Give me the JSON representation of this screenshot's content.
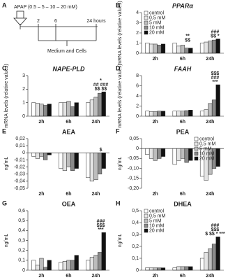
{
  "diagram": {
    "panel_label": "A",
    "dose": "APAP (0.5 – 5 – 10 – 20 mM)",
    "times": [
      "2",
      "6",
      "24 hours"
    ],
    "caption": "Medium and Cells"
  },
  "chart_data": [
    {
      "type": "bar",
      "panel_label": "B",
      "title": "PPARα",
      "italic": true,
      "y_label": "mRNA levels (relative values)",
      "categories": [
        "2h",
        "6h",
        "24h"
      ],
      "series": [
        {
          "name": "control",
          "color": "#ffffff",
          "values": [
            1,
            1,
            1
          ]
        },
        {
          "name": "0,5 mM",
          "color": "#e4e4e4",
          "values": [
            0.9,
            0.7,
            1.1
          ]
        },
        {
          "name": "5 mM",
          "color": "#bdbdbd",
          "values": [
            0.9,
            0.8,
            1.2
          ]
        },
        {
          "name": "10 mM",
          "color": "#8a8a8a",
          "values": [
            0.8,
            0.5,
            1.3
          ]
        },
        {
          "name": "20 mM",
          "color": "#111111",
          "values": [
            0.9,
            0.5,
            1.4
          ]
        }
      ],
      "ylim": [
        0,
        4
      ],
      "yticks": [
        0,
        1,
        2,
        3,
        4
      ],
      "legend": "upper left",
      "annotations": [
        {
          "category": "6h",
          "lines": [
            "**",
            "$$"
          ]
        },
        {
          "category": "24h",
          "lines": [
            "###",
            "$$ *"
          ]
        }
      ]
    },
    {
      "type": "bar",
      "panel_label": "C",
      "title": "NAPE-PLD",
      "italic": true,
      "y_label": "mRNA levels (relative values)",
      "categories": [
        "2h",
        "6h",
        "24h"
      ],
      "series": [
        {
          "name": "control",
          "color": "#ffffff",
          "values": [
            1,
            1,
            1
          ]
        },
        {
          "name": "0,5 mM",
          "color": "#e4e4e4",
          "values": [
            0.95,
            1.0,
            1.2
          ]
        },
        {
          "name": "5 mM",
          "color": "#bdbdbd",
          "values": [
            0.9,
            1.1,
            1.4
          ]
        },
        {
          "name": "10 mM",
          "color": "#8a8a8a",
          "values": [
            0.8,
            0.7,
            1.7
          ]
        },
        {
          "name": "20 mM",
          "color": "#111111",
          "values": [
            0.9,
            1.0,
            1.8
          ]
        }
      ],
      "ylim": [
        0,
        3
      ],
      "yticks": [
        0,
        1,
        2,
        3
      ],
      "annotations": [
        {
          "category": "24h",
          "lines": [
            "*",
            "## ###",
            "$$ $$"
          ]
        }
      ]
    },
    {
      "type": "bar",
      "panel_label": "D",
      "title": "FAAH",
      "italic": true,
      "y_label": "mRNA levels (relative values)",
      "categories": [
        "2h",
        "6h",
        "24h"
      ],
      "series": [
        {
          "name": "control",
          "color": "#ffffff",
          "values": [
            1,
            1,
            1
          ]
        },
        {
          "name": "0,5 mM",
          "color": "#e4e4e4",
          "values": [
            0.9,
            1,
            1.3
          ]
        },
        {
          "name": "5 mM",
          "color": "#bdbdbd",
          "values": [
            0.9,
            1,
            2.5
          ]
        },
        {
          "name": "10 mM",
          "color": "#8a8a8a",
          "values": [
            1,
            1.1,
            3.2
          ]
        },
        {
          "name": "20 mM",
          "color": "#111111",
          "values": [
            1,
            1.2,
            6.2
          ]
        }
      ],
      "ylim": [
        0,
        8
      ],
      "yticks": [
        0,
        2,
        4,
        6,
        8
      ],
      "annotations": [
        {
          "category": "24h",
          "lines": [
            "$$$",
            "###",
            "***"
          ]
        }
      ]
    },
    {
      "type": "bar",
      "panel_label": "E",
      "title": "AEA",
      "italic": false,
      "y_label": "ng/mL",
      "categories": [
        "2h",
        "6h",
        "24h"
      ],
      "series": [
        {
          "name": "control",
          "color": "#ffffff",
          "values": [
            -0.005,
            -0.022,
            -0.035
          ]
        },
        {
          "name": "0,5 mM",
          "color": "#e4e4e4",
          "values": [
            -0.008,
            -0.025,
            -0.04
          ]
        },
        {
          "name": "5 mM",
          "color": "#bdbdbd",
          "values": [
            -0.005,
            -0.02,
            -0.038
          ]
        },
        {
          "name": "10 mM",
          "color": "#8a8a8a",
          "values": [
            -0.01,
            -0.025,
            -0.03
          ]
        },
        {
          "name": "20 mM",
          "color": "#111111",
          "values": [
            -0.003,
            -0.022,
            -0.022
          ]
        }
      ],
      "ylim": [
        -0.05,
        0.02
      ],
      "yticks": [
        {
          "value": 0.02,
          "label": "0,02"
        },
        {
          "value": 0.01,
          "label": "0,01"
        },
        0,
        {
          "value": -0.01,
          "label": "-0,01"
        },
        {
          "value": -0.02,
          "label": "-0,02"
        },
        {
          "value": -0.03,
          "label": "-0,03"
        },
        {
          "value": -0.04,
          "label": "-0,04"
        },
        {
          "value": -0.05,
          "label": "-0,05"
        }
      ],
      "annotations": [
        {
          "category": "24h",
          "lines": [
            "$"
          ]
        }
      ]
    },
    {
      "type": "bar",
      "panel_label": "F",
      "title": "PEA",
      "italic": false,
      "y_label": "ng/mL",
      "categories": [
        "2h",
        "6h",
        "24h"
      ],
      "series": [
        {
          "name": "control",
          "color": "#ffffff",
          "values": [
            -0.03,
            -0.08,
            -0.14
          ]
        },
        {
          "name": "0,5 mM",
          "color": "#e4e4e4",
          "values": [
            -0.05,
            -0.06,
            -0.16
          ]
        },
        {
          "name": "5 mM",
          "color": "#bdbdbd",
          "values": [
            -0.06,
            -0.05,
            -0.13
          ]
        },
        {
          "name": "10 mM",
          "color": "#8a8a8a",
          "values": [
            -0.05,
            -0.07,
            -0.1
          ]
        },
        {
          "name": "20 mM",
          "color": "#111111",
          "values": [
            -0.04,
            -0.06,
            -0.09
          ]
        }
      ],
      "ylim": [
        -0.2,
        0.05
      ],
      "yticks": [
        {
          "value": 0.05,
          "label": "0,05"
        },
        0,
        {
          "value": -0.05,
          "label": "-0,05"
        },
        {
          "value": -0.1,
          "label": "-0,10"
        },
        {
          "value": -0.15,
          "label": "-0,15"
        },
        {
          "value": -0.2,
          "label": "-0,20"
        }
      ],
      "legend": "upper right"
    },
    {
      "type": "bar",
      "panel_label": "G",
      "title": "OEA",
      "italic": false,
      "y_label": "ng/mL",
      "categories": [
        "2h",
        "6h",
        "24h"
      ],
      "series": [
        {
          "name": "control",
          "color": "#ffffff",
          "values": [
            0.1,
            0.08,
            0.1
          ]
        },
        {
          "name": "0,5 mM",
          "color": "#e4e4e4",
          "values": [
            0.05,
            0.09,
            0.13
          ]
        },
        {
          "name": "5 mM",
          "color": "#bdbdbd",
          "values": [
            0.12,
            0.1,
            0.15
          ]
        },
        {
          "name": "10 mM",
          "color": "#8a8a8a",
          "values": [
            0.03,
            0.1,
            0.18
          ]
        },
        {
          "name": "20 mM",
          "color": "#111111",
          "values": [
            0.1,
            0.15,
            0.38
          ]
        }
      ],
      "ylim": [
        0,
        0.6
      ],
      "yticks": [
        0,
        {
          "value": 0.1,
          "label": "0,1"
        },
        {
          "value": 0.2,
          "label": "0,2"
        },
        {
          "value": 0.3,
          "label": "0,3"
        },
        {
          "value": 0.4,
          "label": "0,4"
        },
        {
          "value": 0.5,
          "label": "0,5"
        },
        {
          "value": 0.6,
          "label": "0,6"
        }
      ],
      "annotations": [
        {
          "category": "24h",
          "lines": [
            "###",
            "$$$",
            "***"
          ]
        }
      ]
    },
    {
      "type": "bar",
      "panel_label": "H",
      "title": "DHEA",
      "italic": false,
      "y_label": "ng/mL",
      "categories": [
        "2h",
        "6h",
        "24h"
      ],
      "series": [
        {
          "name": "control",
          "color": "#ffffff",
          "values": [
            0.02,
            0.02,
            0.1
          ]
        },
        {
          "name": "0,5 mM",
          "color": "#e4e4e4",
          "values": [
            0.02,
            0.03,
            0.15
          ]
        },
        {
          "name": "5 mM",
          "color": "#bdbdbd",
          "values": [
            0.02,
            0.03,
            0.18
          ]
        },
        {
          "name": "10 mM",
          "color": "#8a8a8a",
          "values": [
            0.02,
            0.03,
            0.22
          ]
        },
        {
          "name": "20 mM",
          "color": "#111111",
          "values": [
            0.02,
            0.03,
            0.28
          ]
        }
      ],
      "ylim": [
        0,
        0.5
      ],
      "yticks": [
        0,
        {
          "value": 0.1,
          "label": "0,1"
        },
        {
          "value": 0.2,
          "label": "0,2"
        },
        {
          "value": 0.3,
          "label": "0,3"
        },
        {
          "value": 0.4,
          "label": "0,4"
        },
        {
          "value": 0.5,
          "label": "0,5"
        }
      ],
      "legend": "upper left",
      "annotations": [
        {
          "category": "24h",
          "lines": [
            "###",
            "$$$",
            "$ $$ * ***"
          ]
        }
      ]
    }
  ]
}
